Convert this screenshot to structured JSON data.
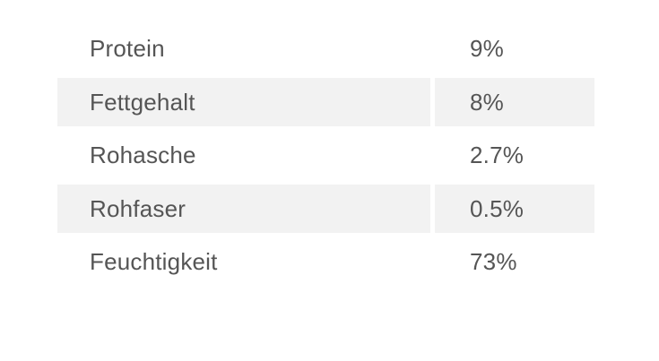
{
  "table": {
    "rows": [
      {
        "name": "Protein",
        "value": "9%"
      },
      {
        "name": "Fettgehalt",
        "value": "8%"
      },
      {
        "name": "Rohasche",
        "value": "2.7%"
      },
      {
        "name": "Rohfaser",
        "value": "0.5%"
      },
      {
        "name": "Feuchtigkeit",
        "value": "73%"
      }
    ]
  },
  "colors": {
    "row_shade": "#f2f2f2",
    "text": "#555555",
    "background": "#ffffff"
  }
}
